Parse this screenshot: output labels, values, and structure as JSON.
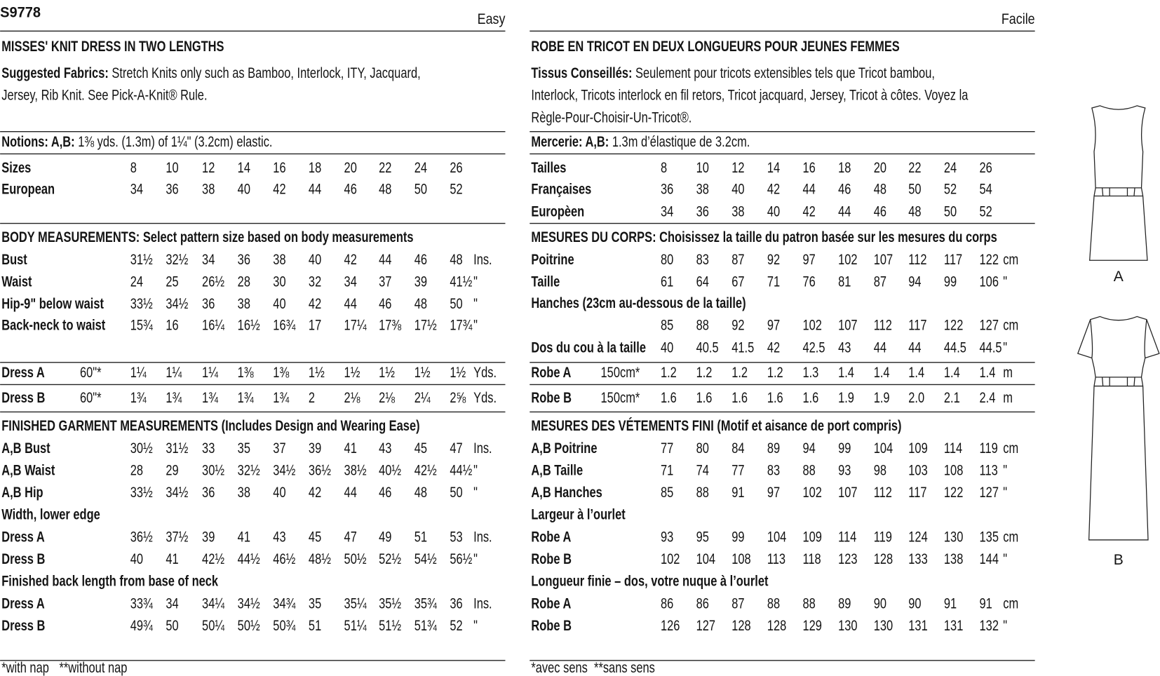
{
  "header": {
    "code": "S9778",
    "level_en": "Easy",
    "level_fr": "Facile"
  },
  "en": {
    "title": "MISSES' KNIT DRESS IN TWO LENGTHS",
    "fabrics_label": "Suggested Fabrics:",
    "fabrics_lines": [
      " Stretch Knits only such as Bamboo, Interlock, ITY, Jacquard,",
      "Jersey, Rib Knit. See Pick-A-Knit® Rule."
    ],
    "notions_label": "Notions: A,B:",
    "notions_text": " 1⅜ yds. (1.3m) of 1¼\" (3.2cm) elastic.",
    "rows": [
      {
        "label": "Sizes",
        "values": [
          "8",
          "10",
          "12",
          "14",
          "16",
          "18",
          "20",
          "22",
          "24",
          "26"
        ]
      },
      {
        "label": "European",
        "values": [
          "34",
          "36",
          "38",
          "40",
          "42",
          "44",
          "46",
          "48",
          "50",
          "52"
        ]
      },
      {
        "heading": "BODY MEASUREMENTS: Select pattern size based on body measurements"
      },
      {
        "label": "Bust",
        "values": [
          "31½",
          "32½",
          "34",
          "36",
          "38",
          "40",
          "42",
          "44",
          "46",
          "48"
        ],
        "unit": "Ins."
      },
      {
        "label": "Waist",
        "values": [
          "24",
          "25",
          "26½",
          "28",
          "30",
          "32",
          "34",
          "37",
          "39",
          "41½"
        ],
        "unit": "\""
      },
      {
        "label": "Hip-9\" below waist",
        "values": [
          "33½",
          "34½",
          "36",
          "38",
          "40",
          "42",
          "44",
          "46",
          "48",
          "50"
        ],
        "unit": "\""
      },
      {
        "label": "Back-neck to waist",
        "values": [
          "15¾",
          "16",
          "16¼",
          "16½",
          "16¾",
          "17",
          "17¼",
          "17⅜",
          "17½",
          "17¾"
        ],
        "unit": "\""
      },
      {
        "label": "Dress A",
        "width": "60\"*",
        "values": [
          "1¼",
          "1¼",
          "1¼",
          "1⅜",
          "1⅜",
          "1½",
          "1½",
          "1½",
          "1½",
          "1½"
        ],
        "unit": "Yds."
      },
      {
        "label": "Dress B",
        "width": "60\"*",
        "values": [
          "1¾",
          "1¾",
          "1¾",
          "1¾",
          "1¾",
          "2",
          "2⅛",
          "2⅛",
          "2¼",
          "2⅝"
        ],
        "unit": "Yds."
      },
      {
        "heading": "FINISHED GARMENT MEASUREMENTS (Includes Design and Wearing Ease)"
      },
      {
        "label": "A,B Bust",
        "values": [
          "30½",
          "31½",
          "33",
          "35",
          "37",
          "39",
          "41",
          "43",
          "45",
          "47"
        ],
        "unit": "Ins."
      },
      {
        "label": "A,B Waist",
        "values": [
          "28",
          "29",
          "30½",
          "32½",
          "34½",
          "36½",
          "38½",
          "40½",
          "42½",
          "44½"
        ],
        "unit": "\""
      },
      {
        "label": "A,B Hip",
        "values": [
          "33½",
          "34½",
          "36",
          "38",
          "40",
          "42",
          "44",
          "46",
          "48",
          "50"
        ],
        "unit": "\""
      },
      {
        "label": "Width, lower edge"
      },
      {
        "label": "Dress A",
        "values": [
          "36½",
          "37½",
          "39",
          "41",
          "43",
          "45",
          "47",
          "49",
          "51",
          "53"
        ],
        "unit": "Ins."
      },
      {
        "label": "Dress B",
        "values": [
          "40",
          "41",
          "42½",
          "44½",
          "46½",
          "48½",
          "50½",
          "52½",
          "54½",
          "56½"
        ],
        "unit": "\""
      },
      {
        "label": "Finished back length from base of neck"
      },
      {
        "label": "Dress A",
        "values": [
          "33¾",
          "34",
          "34¼",
          "34½",
          "34¾",
          "35",
          "35¼",
          "35½",
          "35¾",
          "36"
        ],
        "unit": "Ins."
      },
      {
        "label": "Dress B",
        "values": [
          "49¾",
          "50",
          "50¼",
          "50½",
          "50¾",
          "51",
          "51¼",
          "51½",
          "51¾",
          "52"
        ],
        "unit": "\""
      }
    ],
    "footnotes": [
      "*with nap",
      "**without nap"
    ]
  },
  "fr": {
    "title": "ROBE EN TRICOT EN DEUX LONGUEURS POUR JEUNES FEMMES",
    "fabrics_label": "Tissus Conseillés:",
    "fabrics_lines": [
      " Seulement pour tricots extensibles tels que Tricot bambou,",
      "Interlock, Tricots interlock en fil retors, Tricot jacquard, Jersey, Tricot à côtes. Voyez la",
      "Règle-Pour-Choisir-Un-Tricot®."
    ],
    "notions_label": "Mercerie: A,B:",
    "notions_text": " 1.3m d’élastique de 3.2cm.",
    "rows": [
      {
        "label": "Tailles",
        "values": [
          "8",
          "10",
          "12",
          "14",
          "16",
          "18",
          "20",
          "22",
          "24",
          "26"
        ]
      },
      {
        "label": "Françaises",
        "values": [
          "36",
          "38",
          "40",
          "42",
          "44",
          "46",
          "48",
          "50",
          "52",
          "54"
        ]
      },
      {
        "label": "Europèen",
        "values": [
          "34",
          "36",
          "38",
          "40",
          "42",
          "44",
          "46",
          "48",
          "50",
          "52"
        ]
      },
      {
        "heading": "MESURES DU CORPS: Choisissez la taille du patron basée sur les mesures du corps"
      },
      {
        "label": "Poitrine",
        "values": [
          "80",
          "83",
          "87",
          "92",
          "97",
          "102",
          "107",
          "112",
          "117",
          "122"
        ],
        "unit": "cm"
      },
      {
        "label": "Taille",
        "values": [
          "61",
          "64",
          "67",
          "71",
          "76",
          "81",
          "87",
          "94",
          "99",
          "106"
        ],
        "unit": "\""
      },
      {
        "label": "Hanches (23cm au-dessous de la taille)"
      },
      {
        "values": [
          "85",
          "88",
          "92",
          "97",
          "102",
          "107",
          "112",
          "117",
          "122",
          "127"
        ],
        "unit": "cm"
      },
      {
        "label": "Dos du cou à la taille",
        "values": [
          "40",
          "40.5",
          "41.5",
          "42",
          "42.5",
          "43",
          "44",
          "44",
          "44.5",
          "44.5"
        ],
        "unit": "\""
      },
      {
        "label": "Robe A",
        "width": "150cm*",
        "values": [
          "1.2",
          "1.2",
          "1.2",
          "1.2",
          "1.3",
          "1.4",
          "1.4",
          "1.4",
          "1.4",
          "1.4"
        ],
        "unit": "m"
      },
      {
        "label": "Robe B",
        "width": "150cm*",
        "values": [
          "1.6",
          "1.6",
          "1.6",
          "1.6",
          "1.6",
          "1.9",
          "1.9",
          "2.0",
          "2.1",
          "2.4"
        ],
        "unit": "m"
      },
      {
        "heading": "MESURES DES VÉTEMENTS FINI (Motif et aisance de port compris)"
      },
      {
        "label": "A,B Poitrine",
        "values": [
          "77",
          "80",
          "84",
          "89",
          "94",
          "99",
          "104",
          "109",
          "114",
          "119"
        ],
        "unit": "cm"
      },
      {
        "label": "A,B Taille",
        "values": [
          "71",
          "74",
          "77",
          "83",
          "88",
          "93",
          "98",
          "103",
          "108",
          "113"
        ],
        "unit": "\""
      },
      {
        "label": "A,B Hanches",
        "values": [
          "85",
          "88",
          "91",
          "97",
          "102",
          "107",
          "112",
          "117",
          "122",
          "127"
        ],
        "unit": "\""
      },
      {
        "label": "Largeur à l’ourlet"
      },
      {
        "label": "Robe A",
        "values": [
          "93",
          "95",
          "99",
          "104",
          "109",
          "114",
          "119",
          "124",
          "130",
          "135"
        ],
        "unit": "cm"
      },
      {
        "label": "Robe B",
        "values": [
          "102",
          "104",
          "108",
          "113",
          "118",
          "123",
          "128",
          "133",
          "138",
          "144"
        ],
        "unit": "\""
      },
      {
        "label": "Longueur finie – dos, votre nuque à l’ourlet"
      },
      {
        "label": "Robe A",
        "values": [
          "86",
          "86",
          "87",
          "88",
          "88",
          "89",
          "90",
          "90",
          "91",
          "91"
        ],
        "unit": "cm"
      },
      {
        "label": "Robe B",
        "values": [
          "126",
          "127",
          "128",
          "128",
          "129",
          "130",
          "130",
          "131",
          "131",
          "132"
        ],
        "unit": "\""
      }
    ],
    "footnotes": [
      "*avec sens",
      "**sans sens"
    ]
  },
  "views": [
    "A",
    "B"
  ]
}
